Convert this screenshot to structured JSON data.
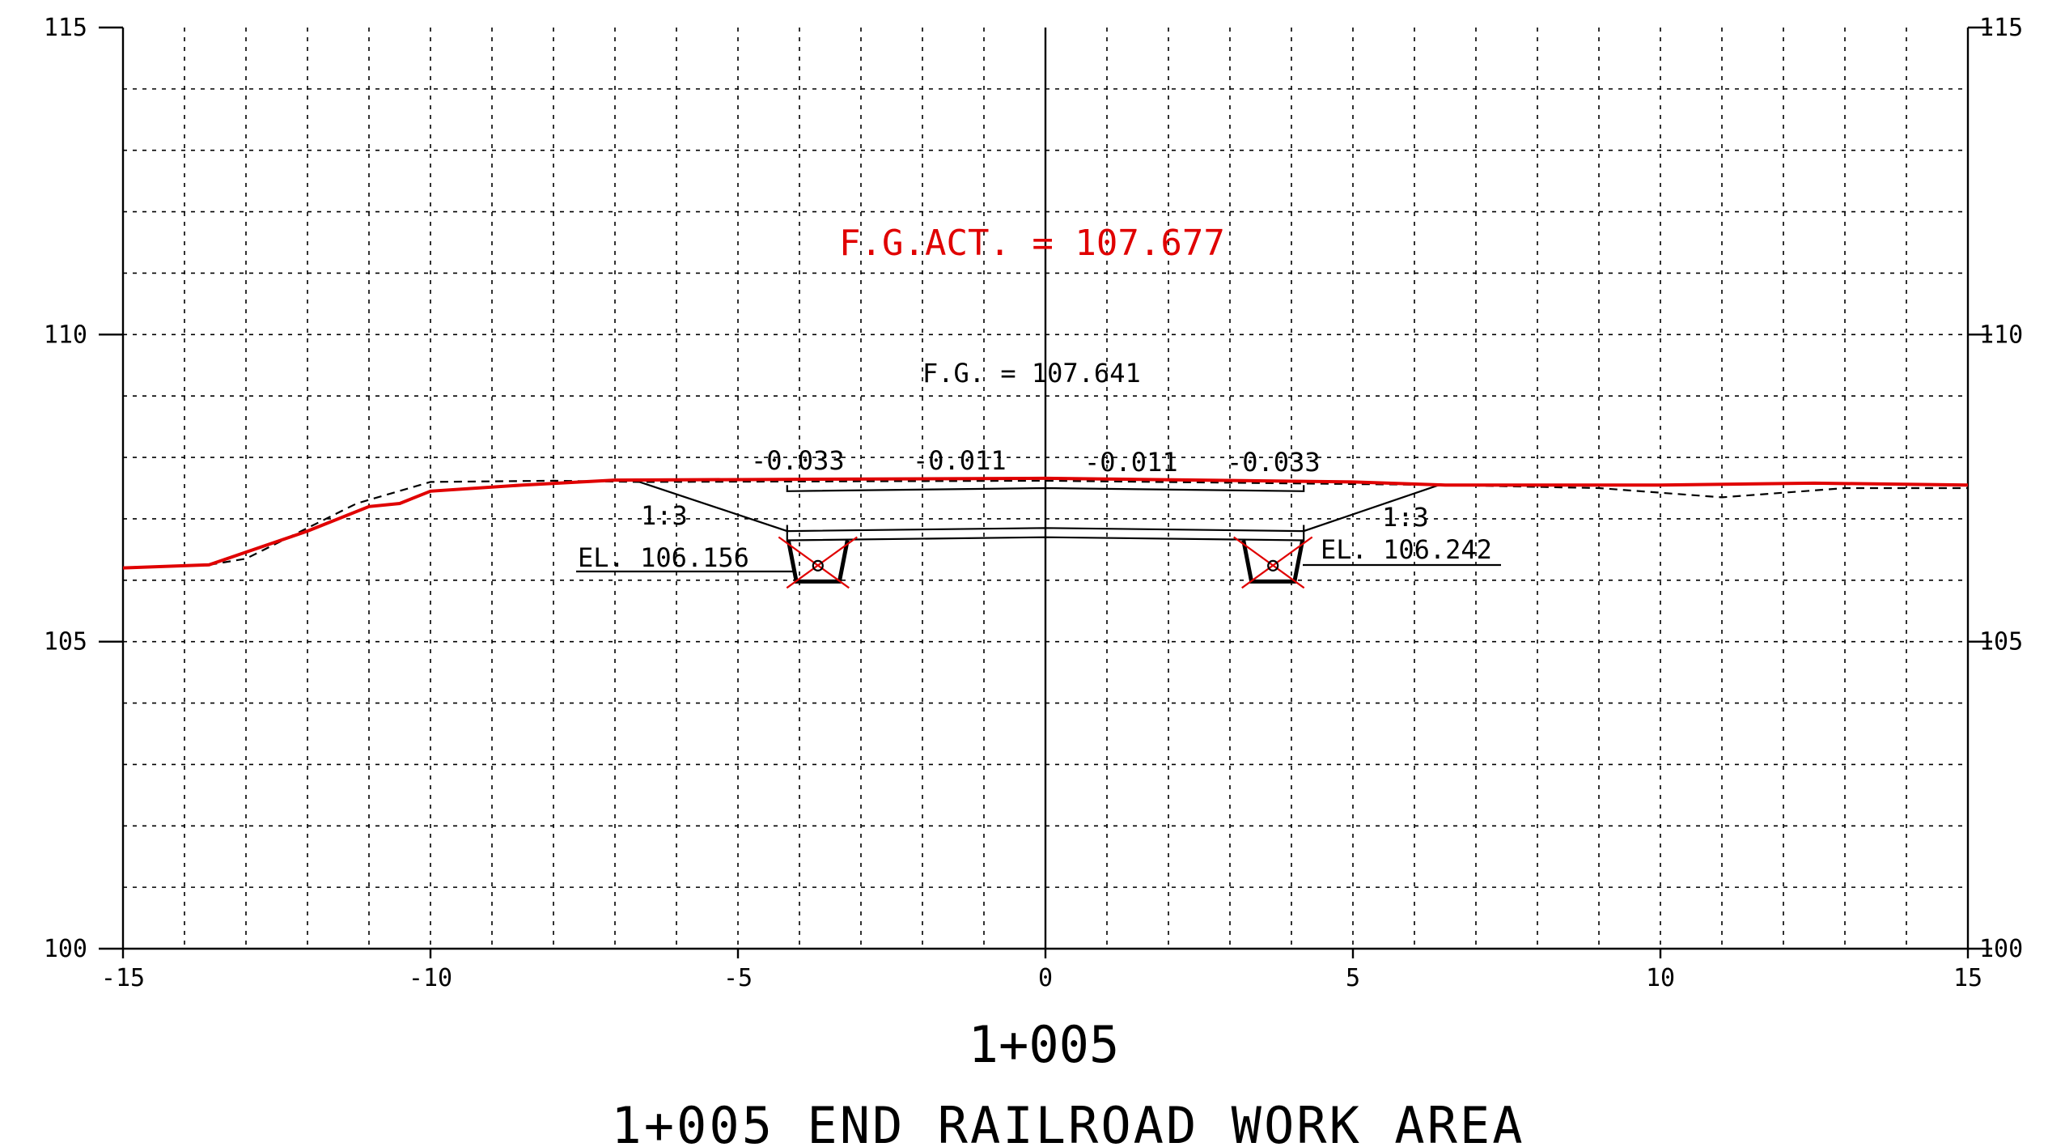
{
  "chart_data": {
    "type": "line",
    "title": "1+005 END RAILROAD WORK AREA",
    "subtitle": "1+005",
    "xlim": [
      -15,
      15
    ],
    "ylim": [
      100,
      115
    ],
    "grid": true,
    "x_ticks": [
      -15,
      -10,
      -5,
      0,
      5,
      10,
      15
    ],
    "y_ticks": [
      100,
      105,
      110,
      115
    ],
    "x_tick_labels": [
      "-15",
      "-10",
      "-5",
      "0",
      "5",
      "10",
      "15"
    ],
    "y_tick_labels": [
      "100",
      "105",
      "110",
      "115"
    ],
    "series": [
      {
        "key": "actual_ground",
        "color": "#e00000",
        "style": "solid",
        "x": [
          -15,
          -13.6,
          -12,
          -11,
          -10.5,
          -10,
          -8.5,
          -7,
          0,
          5,
          6.5,
          10,
          12.5,
          15
        ],
        "y": [
          106.2,
          106.25,
          106.8,
          107.2,
          107.25,
          107.45,
          107.55,
          107.63,
          107.66,
          107.6,
          107.55,
          107.55,
          107.58,
          107.55
        ]
      },
      {
        "key": "existing_ground",
        "color": "#000000",
        "style": "dashed",
        "x": [
          -13.6,
          -13.0,
          -11.2,
          -10.0,
          -8.0,
          -6.6,
          0,
          6.5,
          9,
          11,
          13,
          15
        ],
        "y": [
          106.25,
          106.35,
          107.25,
          107.6,
          107.62,
          107.6,
          107.62,
          107.55,
          107.5,
          107.35,
          107.5,
          107.5
        ]
      },
      {
        "key": "design_top_surface",
        "color": "#000000",
        "style": "solid",
        "x": [
          -6.6,
          -4.2,
          0,
          4.2,
          6.4
        ],
        "y": [
          107.6,
          106.8,
          106.85,
          106.8,
          107.55
        ]
      },
      {
        "key": "design_subgrade",
        "color": "#000000",
        "style": "solid",
        "x": [
          -4.2,
          -4.2,
          0,
          4.2,
          4.2
        ],
        "y": [
          107.55,
          107.45,
          107.5,
          107.45,
          107.55
        ]
      },
      {
        "key": "design_base",
        "color": "#000000",
        "style": "solid",
        "x": [
          -4.2,
          -4.2,
          0,
          4.2,
          4.2
        ],
        "y": [
          106.9,
          106.65,
          106.7,
          106.65,
          106.9
        ]
      }
    ],
    "ditches": [
      {
        "center_x": -3.7,
        "top_y": 106.65,
        "bottom_y": 105.98,
        "top_half_width": 0.48,
        "bottom_half_width": 0.35
      },
      {
        "center_x": 3.7,
        "top_y": 106.65,
        "bottom_y": 105.98,
        "top_half_width": 0.48,
        "bottom_half_width": 0.35
      }
    ],
    "annotations": {
      "fg_actual": "F.G.ACT. = 107.677",
      "fg_design": "F.G. = 107.641",
      "slope_left_outer": "-0.033",
      "slope_left_inner": "-0.011",
      "slope_right_inner": "-0.011",
      "slope_right_outer": "-0.033",
      "side_slope_left": "1:3",
      "side_slope_right": "1:3",
      "elevation_left": "EL. 106.156",
      "elevation_right": "EL. 106.242"
    }
  }
}
